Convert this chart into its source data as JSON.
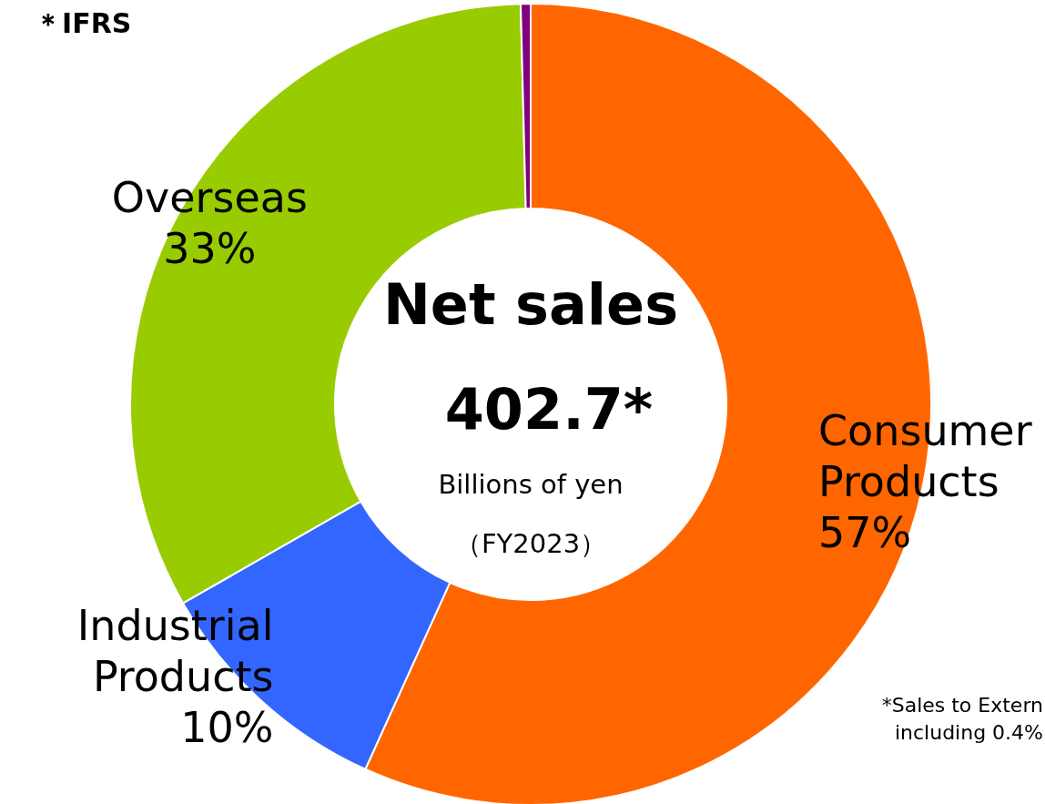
{
  "chart_data": {
    "type": "donut",
    "title": "Net sales",
    "categories": [
      "Consumer Products",
      "Industrial Products",
      "Overseas",
      null
    ],
    "values": [
      57,
      10,
      33,
      0.4
    ],
    "colors": [
      "#ff6600",
      "#3366ff",
      "#99cc00",
      "#800080"
    ],
    "value_labels": [
      "57%",
      "10%",
      "33%",
      null
    ],
    "annotations": [
      "402.7*",
      "Billions of yen",
      "（FY2023）",
      "＊IFRS",
      "*Sales to Extern",
      "including 0.4%"
    ],
    "legend": false
  }
}
